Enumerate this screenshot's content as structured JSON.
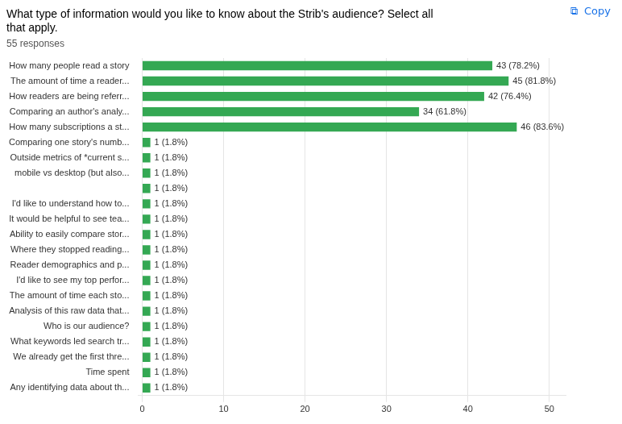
{
  "chart_data": {
    "type": "bar",
    "orientation": "horizontal",
    "title": [
      "What type of information would you like to know about the Strib's audience? Select all",
      "that apply."
    ],
    "subtitle": "55 responses",
    "annotations": [
      {
        "text": "⧉  Copy",
        "color": "#1a73e8"
      }
    ],
    "categories": [
      "How many people read a story",
      "The amount of time a reader...",
      "How readers are being referr...",
      "Comparing an author's analy...",
      "How many subscriptions a st...",
      "Comparing one story's numb...",
      "Outside metrics of *current s...",
      "mobile vs desktop (but also...",
      null,
      "I'd like to understand how to...",
      "It would be helpful to see tea...",
      "Ability to easily compare stor...",
      "Where they stopped reading...",
      "Reader demographics and p...",
      "I'd like to see my top perfor...",
      "The amount of time each sto...",
      "Analysis of this raw data that...",
      "Who is our audience?",
      "What keywords led search tr...",
      "We already get the first thre...",
      "Time spent",
      "Any identifying data about th..."
    ],
    "values": [
      43,
      45,
      42,
      34,
      46,
      1,
      1,
      1,
      1,
      1,
      1,
      1,
      1,
      1,
      1,
      1,
      1,
      1,
      1,
      1,
      1,
      1
    ],
    "value_labels": [
      "43 (78.2%)",
      "45 (81.8%)",
      "42 (76.4%)",
      "34 (61.8%)",
      "46 (83.6%)",
      "1 (1.8%)",
      "1 (1.8%)",
      "1 (1.8%)",
      "1 (1.8%)",
      "1 (1.8%)",
      "1 (1.8%)",
      "1 (1.8%)",
      "1 (1.8%)",
      "1 (1.8%)",
      "1 (1.8%)",
      "1 (1.8%)",
      "1 (1.8%)",
      "1 (1.8%)",
      "1 (1.8%)",
      "1 (1.8%)",
      "1 (1.8%)",
      "1 (1.8%)"
    ],
    "data_labels": true,
    "color": "#34a853",
    "xlim": [
      -0.5,
      52
    ],
    "xticks": [
      0,
      10,
      20,
      30,
      40,
      50
    ],
    "grid": true
  }
}
